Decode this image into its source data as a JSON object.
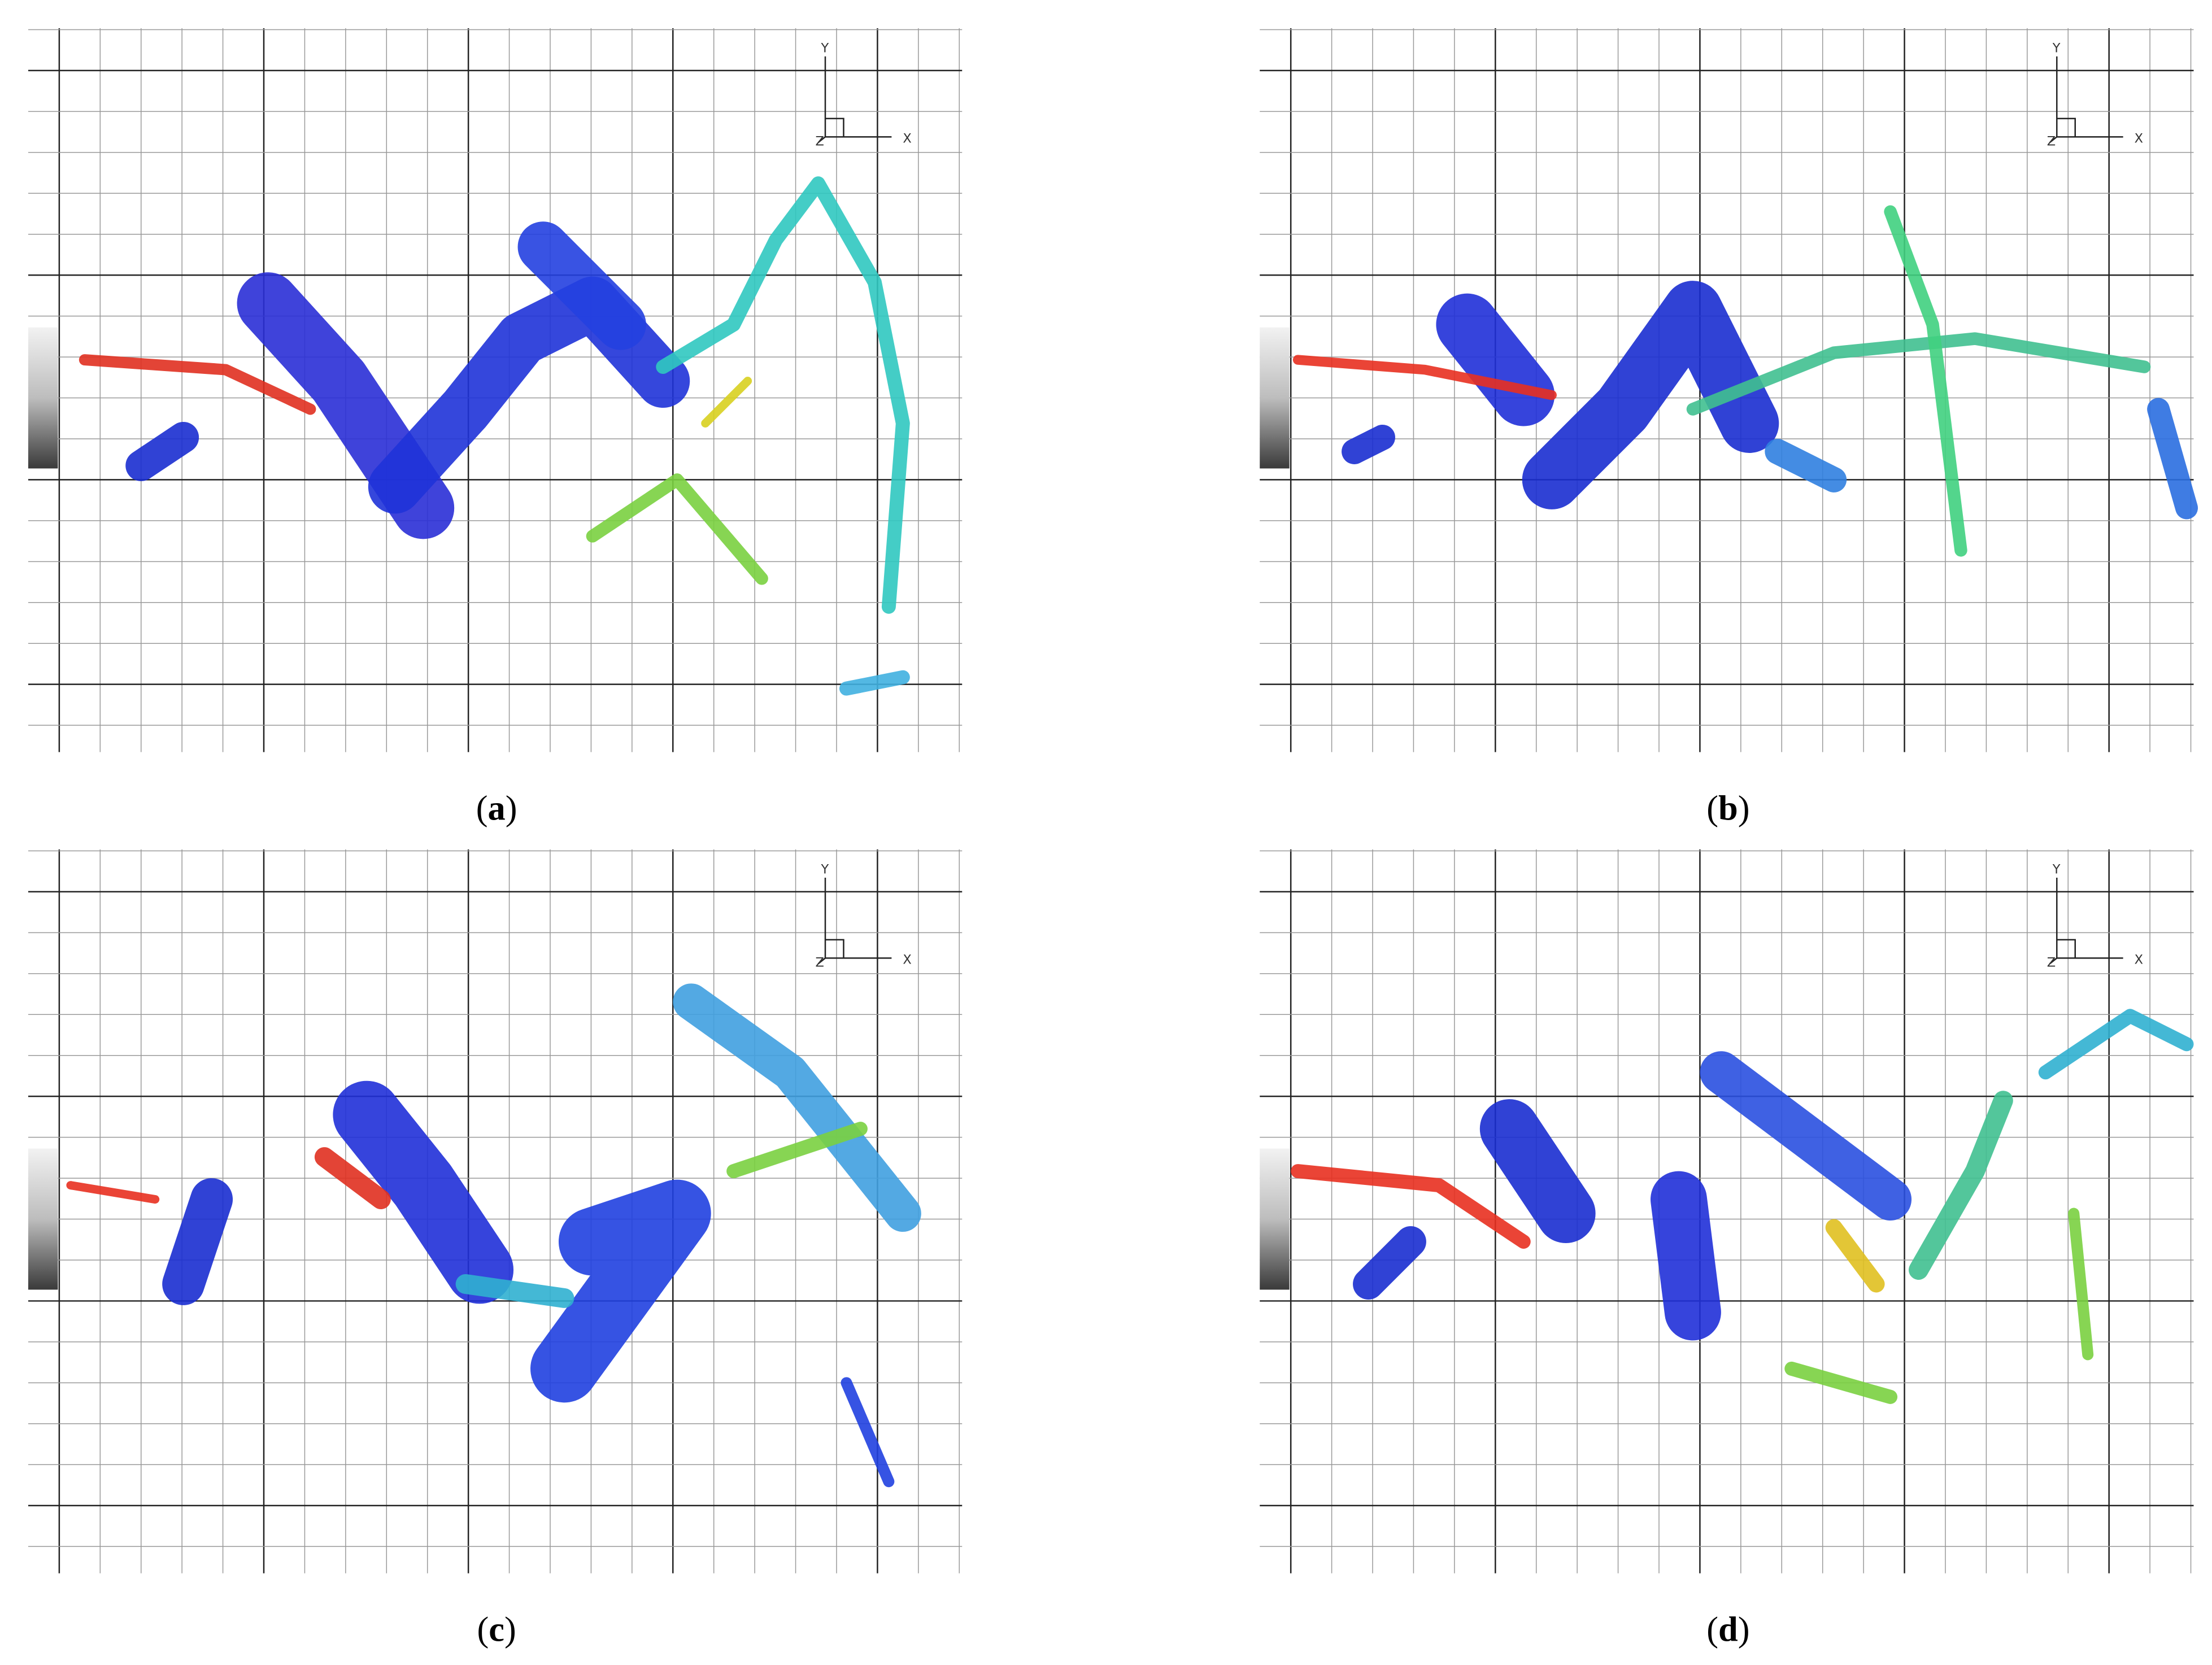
{
  "panels": [
    {
      "caption": [
        "(",
        "a",
        ")"
      ],
      "axes": {
        "x": "X",
        "y": "Y",
        "z": "Z"
      }
    },
    {
      "caption": [
        "(",
        "b",
        ")"
      ],
      "axes": {
        "x": "X",
        "y": "Y",
        "z": "Z"
      }
    },
    {
      "caption": [
        "(",
        "c",
        ")"
      ],
      "axes": {
        "x": "X",
        "y": "Y",
        "z": "Z"
      }
    },
    {
      "caption": [
        "(",
        "d",
        ")"
      ],
      "axes": {
        "x": "X",
        "y": "Y",
        "z": "Z"
      }
    }
  ]
}
